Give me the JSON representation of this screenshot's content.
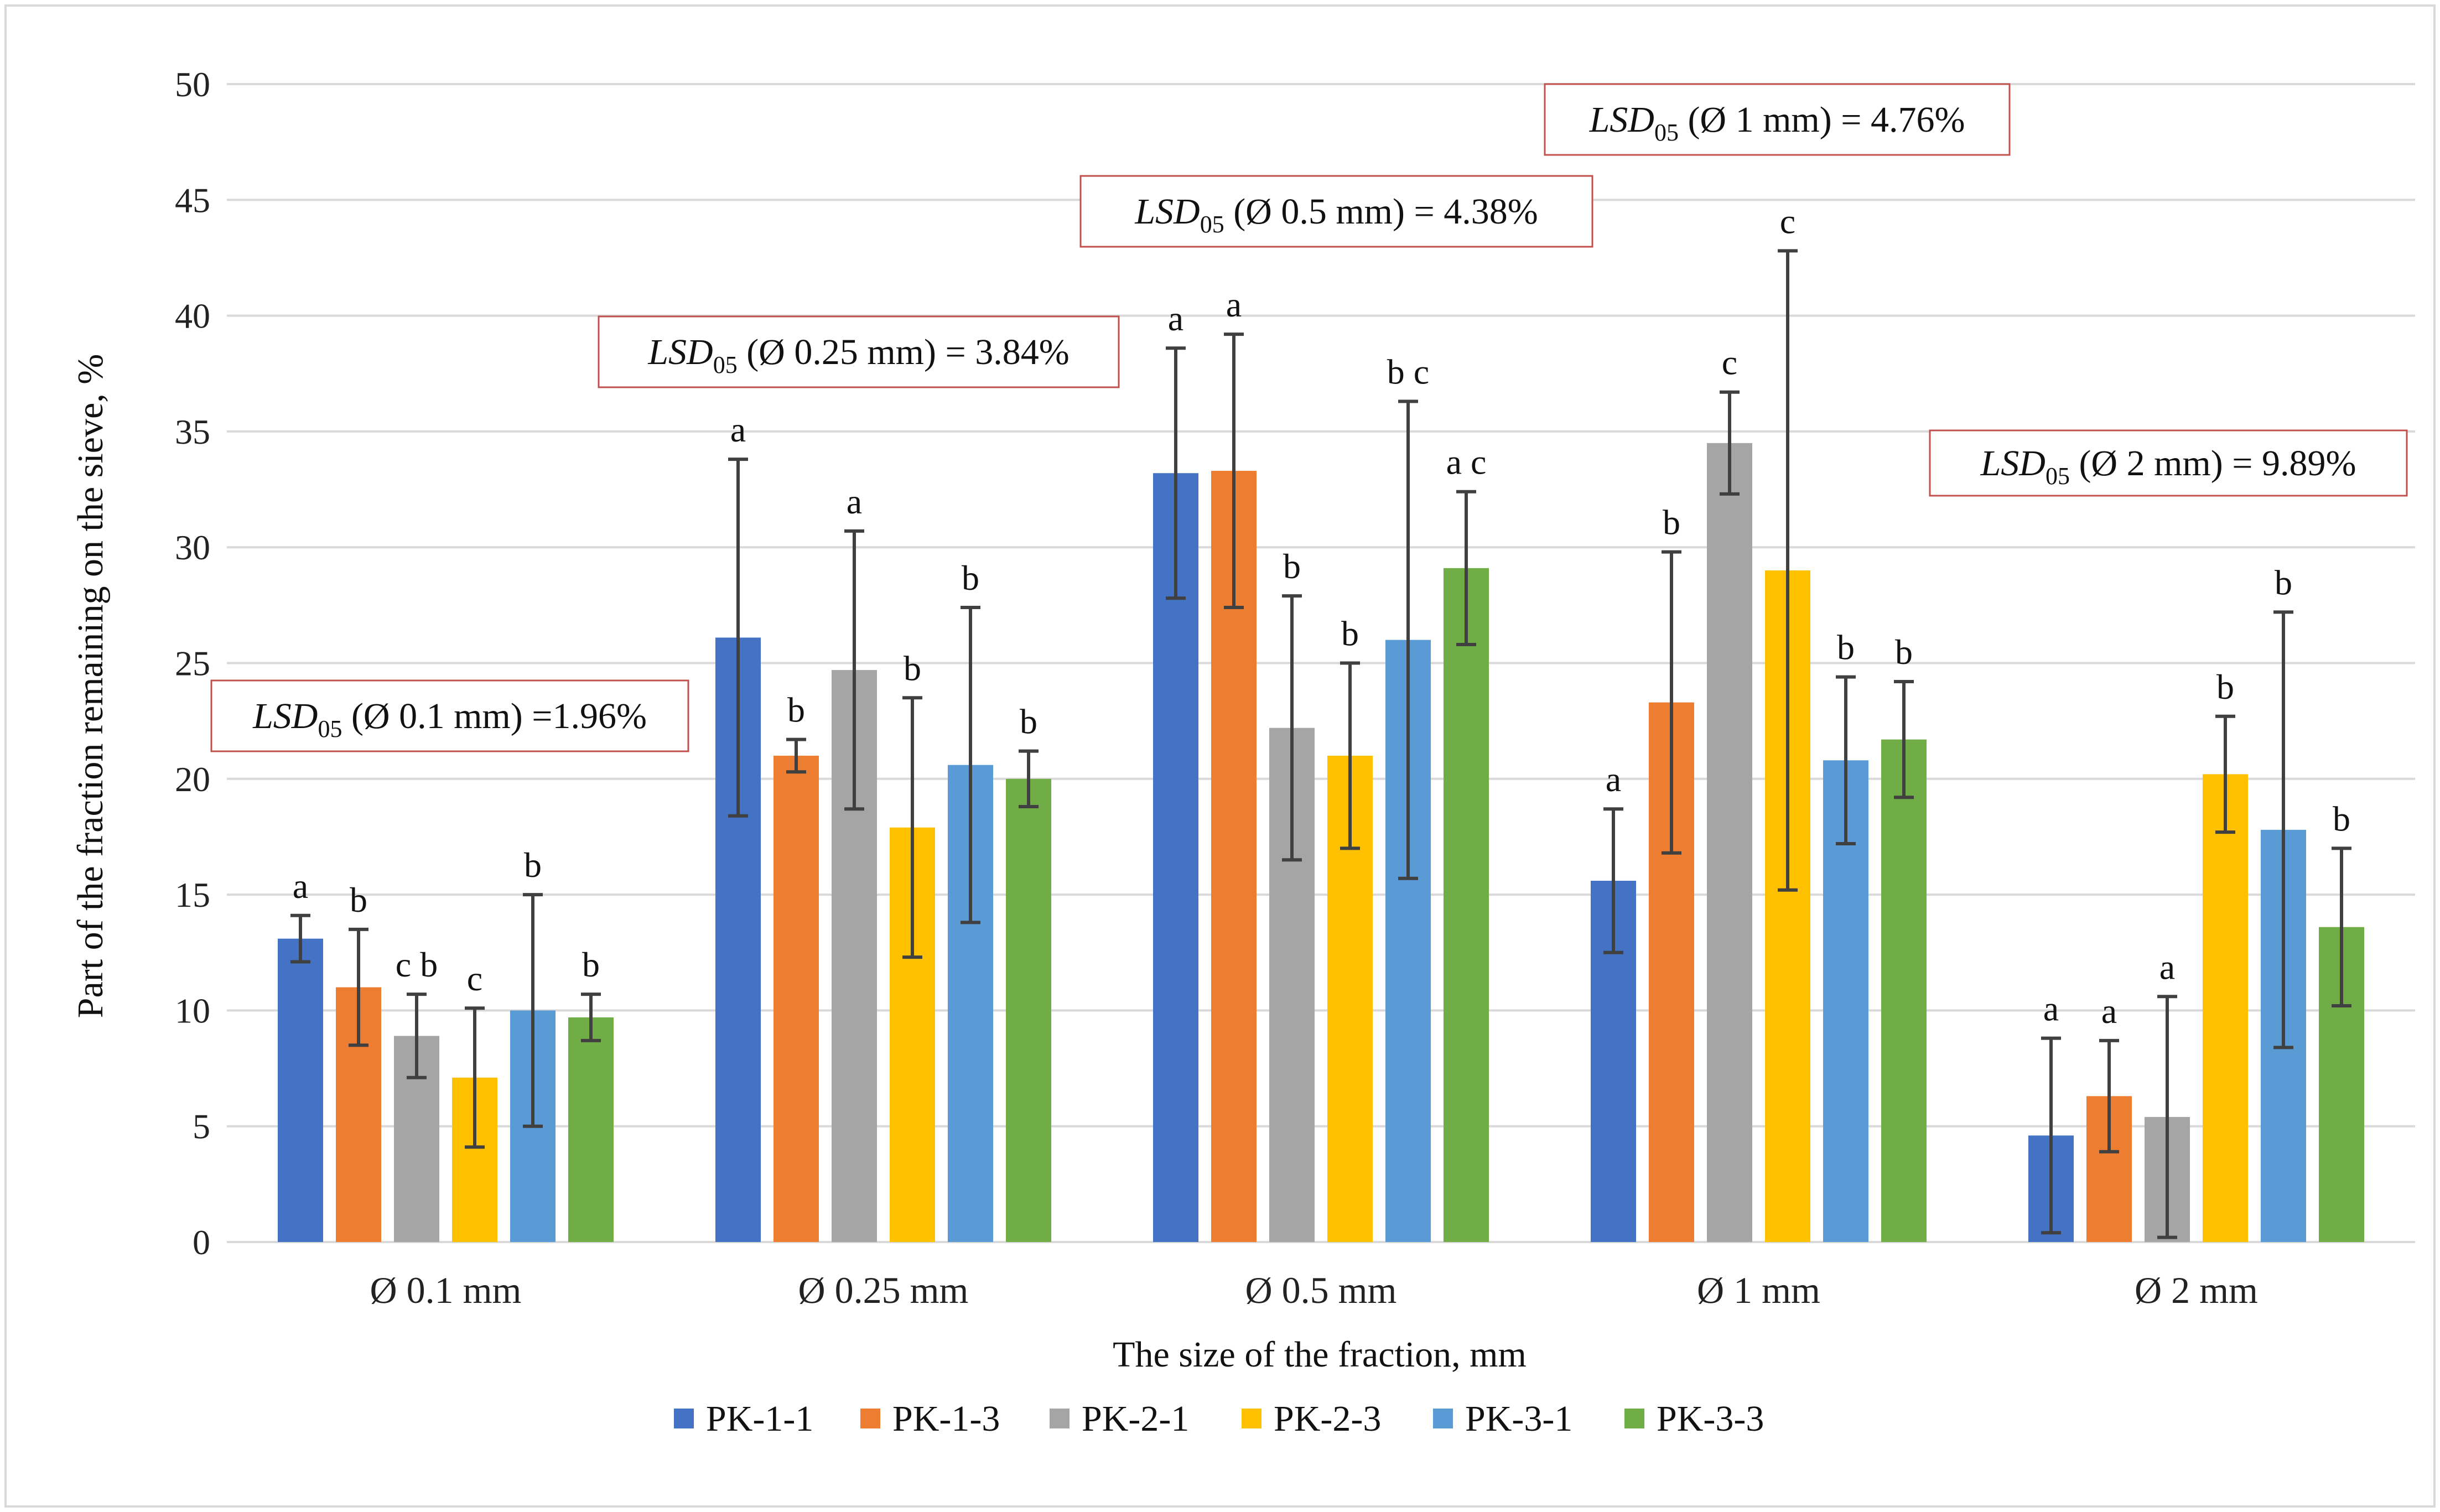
{
  "chart_data": {
    "type": "bar",
    "title": "",
    "xlabel": "The size of the fraction, mm",
    "ylabel": "Part of the fraction remaining on the sieve, %",
    "ylim": [
      0,
      50
    ],
    "yticks": [
      0,
      5,
      10,
      15,
      20,
      25,
      30,
      35,
      40,
      45,
      50
    ],
    "grid": true,
    "legend_position": "bottom",
    "categories": [
      "Ø 0.1 mm",
      "Ø 0.25 mm",
      "Ø 0.5 mm",
      "Ø 1 mm",
      "Ø 2 mm"
    ],
    "series": [
      {
        "name": "PK-1-1",
        "color": "#4472C4",
        "values": [
          13.1,
          26.1,
          33.2,
          15.6,
          4.6
        ],
        "errors": [
          1.0,
          7.7,
          5.4,
          3.1,
          4.2
        ],
        "letters": [
          "a",
          "a",
          "a",
          "a",
          "a"
        ]
      },
      {
        "name": "PK-1-3",
        "color": "#ED7D31",
        "values": [
          11.0,
          21.0,
          33.3,
          23.3,
          6.3
        ],
        "errors": [
          2.5,
          0.7,
          5.9,
          6.5,
          2.4
        ],
        "letters": [
          "b",
          "b",
          "a",
          "b",
          "a"
        ]
      },
      {
        "name": "PK-2-1",
        "color": "#A5A5A5",
        "values": [
          8.9,
          24.7,
          22.2,
          34.5,
          5.4
        ],
        "errors": [
          1.8,
          6.0,
          5.7,
          2.2,
          5.2
        ],
        "letters": [
          "c b",
          "a",
          "b",
          "c",
          "a"
        ]
      },
      {
        "name": "PK-2-3",
        "color": "#FFC000",
        "values": [
          7.1,
          17.9,
          21.0,
          29.0,
          20.2
        ],
        "errors": [
          3.0,
          5.6,
          4.0,
          13.8,
          2.5
        ],
        "letters": [
          "c",
          "b",
          "b",
          "c",
          "b"
        ]
      },
      {
        "name": "PK-3-1",
        "color": "#5B9BD5",
        "values": [
          10.0,
          20.6,
          26.0,
          20.8,
          17.8
        ],
        "errors": [
          5.0,
          6.8,
          10.3,
          3.6,
          9.4
        ],
        "letters": [
          "b",
          "b",
          "b c",
          "b",
          "b"
        ]
      },
      {
        "name": "PK-3-3",
        "color": "#70AD47",
        "values": [
          9.7,
          20.0,
          29.1,
          21.7,
          13.6
        ],
        "errors": [
          1.0,
          1.2,
          3.3,
          2.5,
          3.4
        ],
        "letters": [
          "b",
          "b",
          "a c",
          "b",
          "b"
        ]
      }
    ],
    "annotations": [
      {
        "prefix": "LSD",
        "sub": "05",
        "text": " (Ø 0.1 mm) =1.96%",
        "category_index": 0
      },
      {
        "prefix": "LSD",
        "sub": "05",
        "text": "  (Ø 0.25 mm) = 3.84%",
        "category_index": 1
      },
      {
        "prefix": "LSD",
        "sub": "05",
        "text": " (Ø 0.5 mm) = 4.38%",
        "category_index": 2
      },
      {
        "prefix": "LSD",
        "sub": "05",
        "text": " (Ø 1 mm) = 4.76%",
        "category_index": 3
      },
      {
        "prefix": "LSD",
        "sub": "05",
        "text": " (Ø 2 mm) = 9.89%",
        "category_index": 4
      }
    ]
  },
  "colors": {
    "grid": "#D9D9D9",
    "error_bar": "#404040",
    "annotation_border": "#C0504D",
    "frame": "#D9D9D9"
  }
}
